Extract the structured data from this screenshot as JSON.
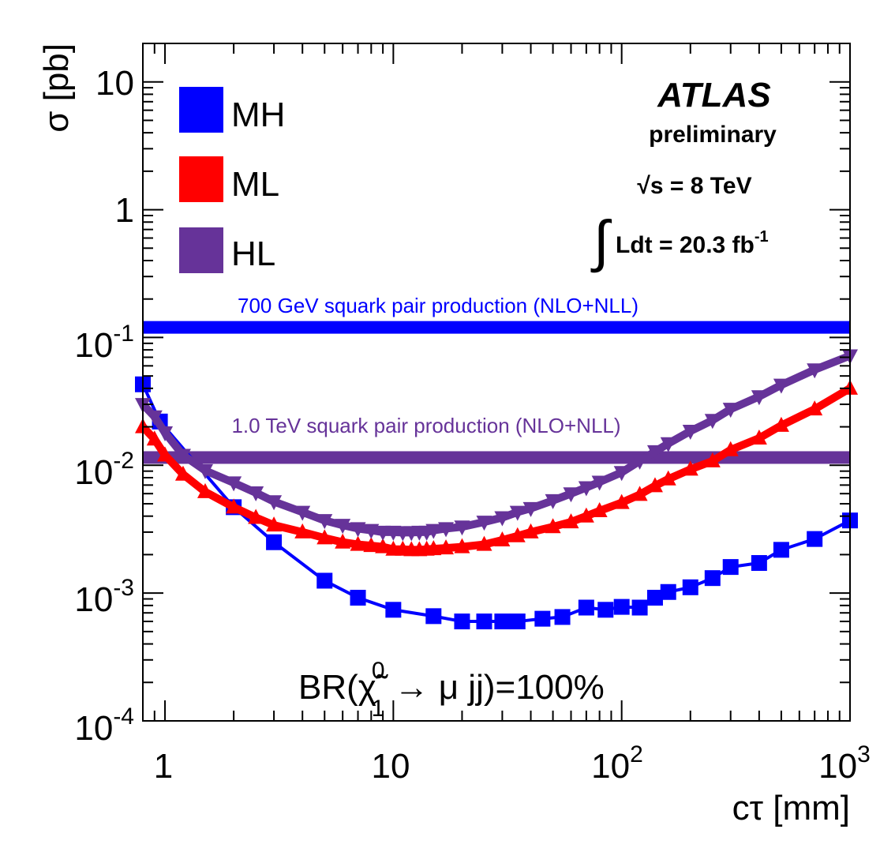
{
  "chart_data": {
    "type": "line",
    "title": "",
    "xlabel": "cτ [mm]",
    "ylabel": "σ [pb]",
    "xscale": "log",
    "yscale": "log",
    "xlim": [
      0.8,
      1000
    ],
    "ylim": [
      0.0001,
      20
    ],
    "grid": false,
    "legend_position": "top-left",
    "x_tick_labels": [
      {
        "value": 1,
        "base": "1",
        "exp": ""
      },
      {
        "value": 10,
        "base": "10",
        "exp": ""
      },
      {
        "value": 100,
        "base": "10",
        "exp": "2"
      },
      {
        "value": 1000,
        "base": "10",
        "exp": "3"
      }
    ],
    "y_tick_labels": [
      {
        "value": 10,
        "base": "10",
        "exp": ""
      },
      {
        "value": 1,
        "base": "1",
        "exp": ""
      },
      {
        "value": 0.1,
        "base": "10",
        "exp": "-1"
      },
      {
        "value": 0.01,
        "base": "10",
        "exp": "-2"
      },
      {
        "value": 0.001,
        "base": "10",
        "exp": "-3"
      },
      {
        "value": 0.0001,
        "base": "10",
        "exp": "-4"
      }
    ],
    "series": [
      {
        "name": "MH",
        "color": "#0000ff",
        "marker": "square",
        "x": [
          0.8,
          0.95,
          2.0,
          3.0,
          5.0,
          7.0,
          10.0,
          15.0,
          20.0,
          25.0,
          30.0,
          35.0,
          45.0,
          55.0,
          70.0,
          85.0,
          100.0,
          120.0,
          140.0,
          160.0,
          200.0,
          250.0,
          300.0,
          400.0,
          500.0,
          700.0,
          1000.0
        ],
        "values": [
          0.043,
          0.022,
          0.0047,
          0.0025,
          0.00125,
          0.00092,
          0.00074,
          0.00066,
          0.0006,
          0.0006,
          0.0006,
          0.0006,
          0.00063,
          0.00065,
          0.00077,
          0.00074,
          0.00078,
          0.00077,
          0.00092,
          0.00102,
          0.00111,
          0.00131,
          0.0016,
          0.00172,
          0.00218,
          0.00265,
          0.0037
        ]
      },
      {
        "name": "ML",
        "color": "#ff0000",
        "marker": "triangle-up",
        "x": [
          0.8,
          0.9,
          1.0,
          1.2,
          1.5,
          2.0,
          2.5,
          3.0,
          4.0,
          5.0,
          6.0,
          7.0,
          8.0,
          9.0,
          10.0,
          11.0,
          12.0,
          13.0,
          14.0,
          15.0,
          17.0,
          20.0,
          25.0,
          30.0,
          35.0,
          40.0,
          50.0,
          60.0,
          70.0,
          80.0,
          100.0,
          120.0,
          140.0,
          160.0,
          200.0,
          250.0,
          300.0,
          400.0,
          500.0,
          700.0,
          1000.0
        ],
        "values": [
          0.02,
          0.016,
          0.012,
          0.0085,
          0.0062,
          0.0047,
          0.0039,
          0.0034,
          0.003,
          0.0027,
          0.0025,
          0.0024,
          0.00235,
          0.0023,
          0.0022,
          0.0022,
          0.00218,
          0.00218,
          0.0022,
          0.00222,
          0.00225,
          0.0023,
          0.0024,
          0.0026,
          0.0028,
          0.003,
          0.0033,
          0.0036,
          0.004,
          0.0044,
          0.0051,
          0.0059,
          0.0069,
          0.0078,
          0.0093,
          0.0108,
          0.0132,
          0.0163,
          0.0205,
          0.0275,
          0.04
        ]
      },
      {
        "name": "HL",
        "color": "#663399",
        "marker": "triangle-down",
        "x": [
          0.8,
          0.9,
          1.0,
          1.2,
          1.5,
          2.0,
          2.5,
          3.0,
          4.0,
          5.0,
          6.0,
          7.0,
          8.0,
          9.0,
          10.0,
          11.0,
          12.0,
          13.0,
          14.0,
          15.0,
          17.0,
          20.0,
          25.0,
          30.0,
          35.0,
          40.0,
          50.0,
          60.0,
          70.0,
          80.0,
          100.0,
          120.0,
          140.0,
          160.0,
          200.0,
          250.0,
          300.0,
          400.0,
          500.0,
          700.0,
          1000.0
        ],
        "values": [
          0.03,
          0.024,
          0.018,
          0.012,
          0.0091,
          0.0073,
          0.0061,
          0.0052,
          0.0043,
          0.0037,
          0.0034,
          0.0032,
          0.0031,
          0.003,
          0.003,
          0.00298,
          0.00298,
          0.003,
          0.003,
          0.0031,
          0.0032,
          0.0033,
          0.0036,
          0.0039,
          0.0043,
          0.0046,
          0.0053,
          0.006,
          0.0067,
          0.0074,
          0.0088,
          0.0108,
          0.0128,
          0.0148,
          0.0185,
          0.0225,
          0.0275,
          0.0345,
          0.0425,
          0.056,
          0.072
        ]
      }
    ],
    "reference_lines": [
      {
        "label": "700 GeV squark pair production (NLO+NLL)",
        "value": 0.12,
        "color": "#0000ff"
      },
      {
        "label": "1.0 TeV squark pair production (NLO+NLL)",
        "value": 0.0115,
        "color": "#663399"
      }
    ],
    "annotations": {
      "experiment": "ATLAS",
      "status": "preliminary",
      "energy": "√s = 8 TeV",
      "lumi_prefix": "∫",
      "lumi": "Ldt = 20.3 fb",
      "lumi_exp": "-1",
      "br_prefix": "BR(",
      "br_symbol": "χ̃",
      "br_sup": "0",
      "br_sub": "1",
      "br_suffix": " → μ jj)=100%"
    }
  }
}
